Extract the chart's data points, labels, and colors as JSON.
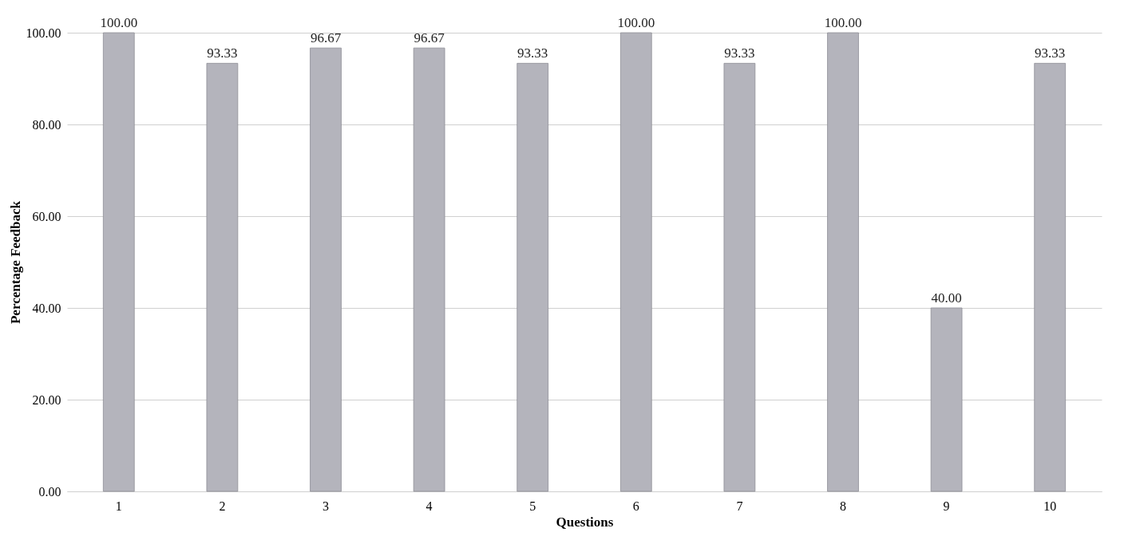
{
  "chart_data": {
    "type": "bar",
    "xlabel": "Questions",
    "ylabel": "Percentage Feedback",
    "categories": [
      "1",
      "2",
      "3",
      "4",
      "5",
      "6",
      "7",
      "8",
      "9",
      "10"
    ],
    "values": [
      100,
      93.33,
      96.67,
      96.67,
      93.33,
      100,
      93.33,
      100,
      40,
      93.33
    ],
    "value_labels": [
      "100.00",
      "93.33",
      "96.67",
      "96.67",
      "93.33",
      "100.00",
      "93.33",
      "100.00",
      "40.00",
      "93.33"
    ],
    "color": "#b4b4bc",
    "ylim": [
      0,
      100
    ],
    "yticks": [
      {
        "value": 0,
        "label": "0.00"
      },
      {
        "value": 20,
        "label": "20.00"
      },
      {
        "value": 40,
        "label": "40.00"
      },
      {
        "value": 60,
        "label": "60.00"
      },
      {
        "value": 80,
        "label": "80.00"
      },
      {
        "value": 100,
        "label": "100.00"
      }
    ],
    "grid": "y"
  }
}
